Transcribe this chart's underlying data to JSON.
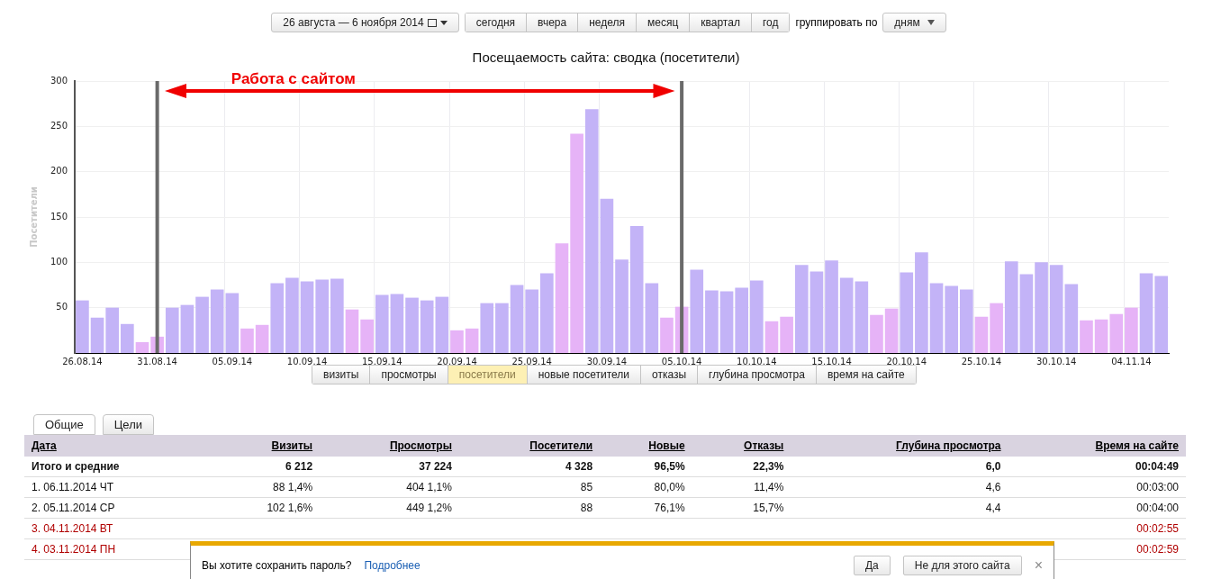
{
  "chart_data": [
    {
      "type": "bar",
      "title": "Посещаемость сайта: сводка (посетители)",
      "ylabel": "Посетители",
      "categories": [
        "26.08.14",
        null,
        null,
        null,
        null,
        "31.08.14",
        null,
        null,
        null,
        null,
        "05.09.14",
        null,
        null,
        null,
        null,
        "10.09.14",
        null,
        null,
        null,
        null,
        "15.09.14",
        null,
        null,
        null,
        null,
        "20.09.14",
        null,
        null,
        null,
        null,
        "25.09.14",
        null,
        null,
        null,
        null,
        "30.09.14",
        null,
        null,
        null,
        null,
        "05.10.14",
        null,
        null,
        null,
        null,
        "10.10.14",
        null,
        null,
        null,
        null,
        "15.10.14",
        null,
        null,
        null,
        null,
        "20.10.14",
        null,
        null,
        null,
        null,
        "25.10.14",
        null,
        null,
        null,
        null,
        "30.10.14",
        null,
        null,
        null,
        null,
        "04.11.14",
        null,
        null
      ],
      "values": [
        58,
        39,
        50,
        32,
        12,
        18,
        50,
        53,
        62,
        70,
        66,
        27,
        31,
        77,
        83,
        79,
        81,
        82,
        48,
        37,
        64,
        65,
        61,
        58,
        62,
        25,
        27,
        55,
        55,
        75,
        70,
        88,
        121,
        242,
        269,
        170,
        103,
        140,
        77,
        39,
        51,
        92,
        69,
        68,
        72,
        80,
        35,
        40,
        97,
        90,
        102,
        83,
        79,
        42,
        49,
        89,
        111,
        77,
        74,
        70,
        40,
        55,
        101,
        87,
        100,
        97,
        76,
        36,
        37,
        43,
        50,
        88,
        85
      ],
      "colors": [
        "#c3b3f7",
        "#c3b3f7",
        "#c3b3f7",
        "#c3b3f7",
        "#e6b3f7",
        "#e6b3f7",
        "#c3b3f7",
        "#c3b3f7",
        "#c3b3f7",
        "#c3b3f7",
        "#c3b3f7",
        "#e6b3f7",
        "#e6b3f7",
        "#c3b3f7",
        "#c3b3f7",
        "#c3b3f7",
        "#c3b3f7",
        "#c3b3f7",
        "#e6b3f7",
        "#e6b3f7",
        "#c3b3f7",
        "#c3b3f7",
        "#c3b3f7",
        "#c3b3f7",
        "#c3b3f7",
        "#e6b3f7",
        "#e6b3f7",
        "#c3b3f7",
        "#c3b3f7",
        "#c3b3f7",
        "#c3b3f7",
        "#c3b3f7",
        "#e6b3f7",
        "#e6b3f7",
        "#c3b3f7",
        "#c3b3f7",
        "#c3b3f7",
        "#c3b3f7",
        "#c3b3f7",
        "#e6b3f7",
        "#e6b3f7",
        "#c3b3f7",
        "#c3b3f7",
        "#c3b3f7",
        "#c3b3f7",
        "#c3b3f7",
        "#e6b3f7",
        "#e6b3f7",
        "#c3b3f7",
        "#c3b3f7",
        "#c3b3f7",
        "#c3b3f7",
        "#c3b3f7",
        "#e6b3f7",
        "#e6b3f7",
        "#c3b3f7",
        "#c3b3f7",
        "#c3b3f7",
        "#c3b3f7",
        "#c3b3f7",
        "#e6b3f7",
        "#e6b3f7",
        "#c3b3f7",
        "#c3b3f7",
        "#c3b3f7",
        "#c3b3f7",
        "#c3b3f7",
        "#e6b3f7",
        "#e6b3f7",
        "#e6b3f7",
        "#e6b3f7",
        "#c3b3f7",
        "#c3b3f7"
      ],
      "ylim": [
        0,
        300
      ],
      "yticks": [
        50,
        100,
        150,
        200,
        250,
        300
      ],
      "grid": true,
      "legend": false,
      "ref_lines": [
        {
          "axis": "x",
          "value": "31.08.14",
          "color": "#6a6a6a"
        },
        {
          "axis": "x",
          "value": "05.10.14",
          "color": "#6a6a6a"
        }
      ],
      "annotations": [
        "Работа с сайтом",
        "26 августа — 6 ноября 2014",
        "сегодня",
        "вчера",
        "неделя",
        "месяц",
        "квартал",
        "год",
        "группировать по",
        "дням",
        "визиты",
        "просмотры",
        "посетители",
        "новые посетители",
        "отказы",
        "глубина просмотра",
        "время на сайте"
      ]
    },
    {
      "type": "other",
      "annotations": [
        "Общие",
        "Цели",
        "Вы хотите сохранить пароль?",
        "Подробнее",
        "Да",
        "Не для этого сайта",
        "×"
      ],
      "categories": [
        "Дата",
        "Визиты",
        "Просмотры",
        "Посетители",
        "Новые",
        "Отказы",
        "Глубина просмотра",
        "Время на сайте"
      ],
      "cell_labels": [
        [
          "Итого и средние",
          "6 212",
          "37 224",
          "4 328",
          "96,5%",
          "22,3%",
          "6,0",
          "00:04:49"
        ],
        [
          "1. 06.11.2014 ЧТ",
          "88 1,4%",
          "404 1,1%",
          "85",
          "80,0%",
          "11,4%",
          "4,6",
          "00:03:00"
        ],
        [
          "2. 05.11.2014 СР",
          "102 1,6%",
          "449 1,2%",
          "88",
          "76,1%",
          "15,7%",
          "4,4",
          "00:04:00"
        ],
        [
          "3. 04.11.2014 ВТ",
          null,
          null,
          null,
          null,
          null,
          null,
          "00:02:55"
        ],
        [
          "4. 03.11.2014 ПН",
          null,
          null,
          null,
          null,
          null,
          null,
          "00:02:59"
        ]
      ]
    }
  ]
}
